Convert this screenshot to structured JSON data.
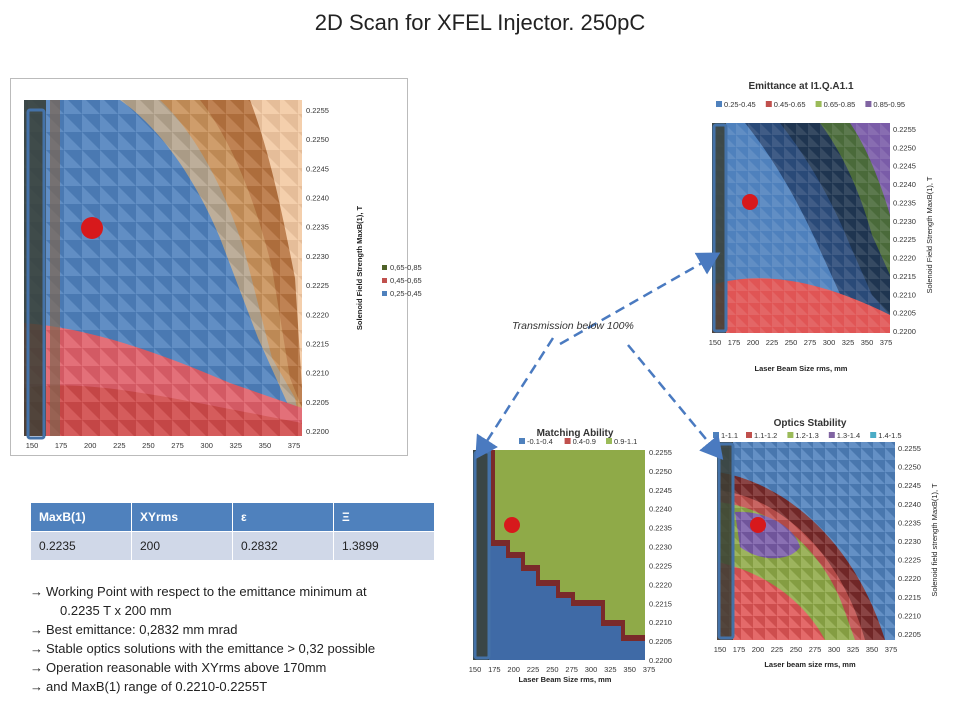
{
  "title": "2D Scan for XFEL Injector. 250pC",
  "colors": {
    "blue": "#4f81bd",
    "blue_light": "#6fa0e0",
    "red": "#e05555",
    "green": "#7a9a4a",
    "lime": "#8faa48",
    "purple": "#7a5ca8",
    "olive": "#8a7050",
    "dark": "#2a3a5a",
    "marker": "#d7191c",
    "arrow": "#4a7ac0"
  },
  "chart_data": [
    {
      "name": "main",
      "type": "heatmap",
      "title": "",
      "x_ticks": [
        "150",
        "175",
        "200",
        "225",
        "250",
        "275",
        "300",
        "325",
        "350",
        "375"
      ],
      "y_ticks": [
        "0.2255",
        "0.2250",
        "0.2245",
        "0.2240",
        "0.2235",
        "0.2230",
        "0.2225",
        "0.2220",
        "0.2215",
        "0.2210",
        "0.2205",
        "0.2200"
      ],
      "xlabel": "",
      "ylabel": "Solenoid Field Strength MaxB(1), T",
      "legend": [
        {
          "label": "0,65-0,85",
          "color": "#4f6228"
        },
        {
          "label": "0,45-0,65",
          "color": "#c0504d"
        },
        {
          "label": "0,25-0,45",
          "color": "#4f81bd"
        }
      ],
      "working_point": {
        "x": 200,
        "y": 0.2235
      }
    },
    {
      "name": "emittance",
      "type": "heatmap",
      "title": "Emittance at I1.Q.A1.1",
      "x_ticks": [
        "150",
        "175",
        "200",
        "225",
        "250",
        "275",
        "300",
        "325",
        "350",
        "375"
      ],
      "y_ticks": [
        "0.2255",
        "0.2250",
        "0.2245",
        "0.2240",
        "0.2235",
        "0.2230",
        "0.2225",
        "0.2220",
        "0.2215",
        "0.2210",
        "0.2205",
        "0.2200"
      ],
      "xlabel": "Laser Beam Size rms, mm",
      "ylabel": "Solenoid Field Strength MaxB(1), T",
      "legend": [
        {
          "label": "0.25-0.45",
          "color": "#4f81bd"
        },
        {
          "label": "0.45-0.65",
          "color": "#c0504d"
        },
        {
          "label": "0.65-0.85",
          "color": "#9bbb59"
        },
        {
          "label": "0.85-0.95",
          "color": "#8064a2"
        }
      ],
      "working_point": {
        "x": 200,
        "y": 0.2235
      }
    },
    {
      "name": "matching",
      "type": "heatmap",
      "title": "Matching Ability",
      "x_ticks": [
        "150",
        "175",
        "200",
        "225",
        "250",
        "275",
        "300",
        "325",
        "350",
        "375"
      ],
      "y_ticks": [
        "0.2255",
        "0.2250",
        "0.2245",
        "0.2240",
        "0.2235",
        "0.2230",
        "0.2225",
        "0.2220",
        "0.2215",
        "0.2210",
        "0.2205",
        "0.2200"
      ],
      "xlabel": "Laser Beam Size rms, mm",
      "ylabel": "",
      "legend": [
        {
          "label": "-0.1-0.4",
          "color": "#4f81bd"
        },
        {
          "label": "0.4-0.9",
          "color": "#c0504d"
        },
        {
          "label": "0.9-1.1",
          "color": "#9bbb59"
        }
      ],
      "working_point": {
        "x": 200,
        "y": 0.2235
      }
    },
    {
      "name": "optics",
      "type": "heatmap",
      "title": "Optics Stability",
      "x_ticks": [
        "150",
        "175",
        "200",
        "225",
        "250",
        "275",
        "300",
        "325",
        "350",
        "375"
      ],
      "y_ticks": [
        "0.2255",
        "0.2250",
        "0.2245",
        "0.2240",
        "0.2235",
        "0.2230",
        "0.2225",
        "0.2220",
        "0.2215",
        "0.2210",
        "0.2205"
      ],
      "xlabel": "Laser beam size rms, mm",
      "ylabel": "Solenoid field strength MaxB(1), T",
      "legend": [
        {
          "label": "1-1.1",
          "color": "#4f81bd"
        },
        {
          "label": "1.1-1.2",
          "color": "#c0504d"
        },
        {
          "label": "1.2-1.3",
          "color": "#9bbb59"
        },
        {
          "label": "1.3-1.4",
          "color": "#8064a2"
        },
        {
          "label": "1.4-1.5",
          "color": "#4bacc6"
        }
      ],
      "working_point": {
        "x": 200,
        "y": 0.2235
      }
    }
  ],
  "transmission_label": "Transmission below 100%",
  "table": {
    "headers": [
      "MaxB(1)",
      "XYrms",
      "ε",
      "Ξ"
    ],
    "row": [
      "0.2235",
      "200",
      "0.2832",
      "1.3899"
    ]
  },
  "notes": [
    {
      "line1": "Working Point with respect to the emittance minimum at",
      "line2": "0.2235  T x 200 mm"
    },
    {
      "line1": "Best emittance: 0,2832 mm mrad"
    },
    {
      "line1": "Stable optics solutions with the emittance  > 0,32 possible"
    },
    {
      "line1": "Operation reasonable with XYrms above 170mm"
    },
    {
      "line1": "and MaxB(1) range of 0.2210-0.2255T"
    }
  ],
  "arrow_glyph": "→"
}
